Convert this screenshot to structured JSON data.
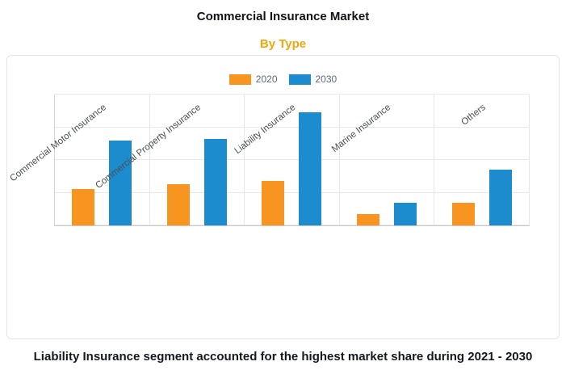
{
  "title": "Commercial Insurance Market",
  "subtitle": "By Type",
  "caption": "Liability Insurance segment accounted for the highest market share during 2021 - 2030",
  "colors": {
    "series_2020": "#f89420",
    "series_2030": "#1d8cce",
    "subtitle": "#f2a60d"
  },
  "chart_data": {
    "type": "bar",
    "title": "Commercial Insurance Market",
    "subtitle": "By Type",
    "categories": [
      "Commercial Motor Insurance",
      "Commercial Property Insurance",
      "Liability Insurance",
      "Marine Insurance",
      "Others"
    ],
    "series": [
      {
        "name": "2020",
        "color": "#f89420",
        "values": [
          1.1,
          1.25,
          1.35,
          0.35,
          0.7
        ]
      },
      {
        "name": "2030",
        "color": "#1d8cce",
        "values": [
          2.6,
          2.65,
          3.45,
          0.7,
          1.7
        ]
      }
    ],
    "xlabel": "",
    "ylabel": "",
    "ylim": [
      0,
      4
    ],
    "y_tick_labels_visible": false,
    "grid": true,
    "legend_position": "top-center",
    "annotation": "Liability Insurance segment accounted for the highest market share during 2021 - 2030"
  }
}
